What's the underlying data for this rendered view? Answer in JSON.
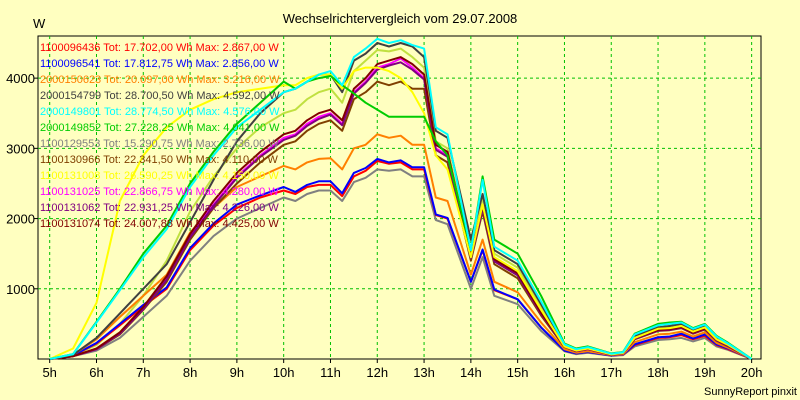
{
  "chart_data": {
    "type": "line",
    "title": "Wechselrichtervergleich vom 29.07.2008",
    "ylabel": "W",
    "xlabel": "",
    "ylim": [
      0,
      4600
    ],
    "xlim": [
      4.75,
      20.2
    ],
    "grid": true,
    "legend_position": "top-left",
    "y_ticks": [
      1000,
      2000,
      3000,
      4000
    ],
    "x_ticks": [
      {
        "value": 5,
        "label": "5h"
      },
      {
        "value": 6,
        "label": "6h"
      },
      {
        "value": 7,
        "label": "7h"
      },
      {
        "value": 8,
        "label": "8h"
      },
      {
        "value": 9,
        "label": "9h"
      },
      {
        "value": 10,
        "label": "10h"
      },
      {
        "value": 11,
        "label": "11h"
      },
      {
        "value": 12,
        "label": "12h"
      },
      {
        "value": 13,
        "label": "13h"
      },
      {
        "value": 14,
        "label": "14h"
      },
      {
        "value": 15,
        "label": "15h"
      },
      {
        "value": 16,
        "label": "16h"
      },
      {
        "value": 17,
        "label": "17h"
      },
      {
        "value": 18,
        "label": "18h"
      },
      {
        "value": 19,
        "label": "19h"
      },
      {
        "value": 20,
        "label": "20h"
      }
    ],
    "x": [
      5.0,
      5.5,
      6.0,
      6.5,
      7.0,
      7.5,
      8.0,
      8.5,
      9.0,
      9.5,
      10.0,
      10.25,
      10.5,
      10.75,
      11.0,
      11.25,
      11.5,
      11.75,
      12.0,
      12.25,
      12.5,
      12.75,
      13.0,
      13.25,
      13.5,
      14.0,
      14.25,
      14.5,
      15.0,
      15.5,
      16.0,
      16.25,
      16.5,
      17.0,
      17.25,
      17.5,
      18.0,
      18.25,
      18.5,
      18.75,
      19.0,
      19.25,
      19.5,
      20.0
    ],
    "series": [
      {
        "name": "1100096436 Tot: 17.702,00 Wh Max: 2.867,00 W",
        "color": "#ff0000",
        "values": [
          0,
          50,
          220,
          480,
          750,
          1000,
          1550,
          1900,
          2150,
          2300,
          2400,
          2350,
          2450,
          2480,
          2480,
          2320,
          2600,
          2680,
          2820,
          2780,
          2800,
          2700,
          2700,
          2050,
          2000,
          1100,
          1550,
          980,
          850,
          450,
          120,
          80,
          100,
          50,
          60,
          200,
          300,
          310,
          340,
          280,
          330,
          200,
          140,
          0
        ]
      },
      {
        "name": "1100096541 Tot: 17.812,75 Wh Max: 2.856,00 W",
        "color": "#0000ff",
        "values": [
          0,
          50,
          230,
          500,
          770,
          1020,
          1580,
          1930,
          2200,
          2330,
          2450,
          2380,
          2480,
          2530,
          2530,
          2360,
          2650,
          2720,
          2850,
          2800,
          2830,
          2730,
          2730,
          2060,
          2010,
          1100,
          1560,
          990,
          850,
          450,
          120,
          80,
          100,
          50,
          60,
          210,
          310,
          320,
          360,
          290,
          350,
          210,
          150,
          0
        ]
      },
      {
        "name": "2000150623 Tot: 20.097,00 Wh Max: 3.216,00 W",
        "color": "#ff8000",
        "values": [
          0,
          60,
          280,
          600,
          900,
          1200,
          1800,
          2150,
          2450,
          2600,
          2750,
          2700,
          2800,
          2850,
          2860,
          2700,
          3000,
          3050,
          3200,
          3150,
          3180,
          3050,
          3050,
          2300,
          2250,
          1200,
          1700,
          1100,
          950,
          520,
          140,
          90,
          110,
          55,
          65,
          240,
          350,
          360,
          390,
          320,
          380,
          230,
          160,
          0
        ]
      },
      {
        "name": "2000154799 Tot: 28.700,50 Wh Max: 4.592,00 W",
        "color": "#404040",
        "values": [
          0,
          60,
          300,
          650,
          1000,
          1350,
          1950,
          2550,
          3100,
          3500,
          3800,
          3850,
          3950,
          4050,
          4050,
          3800,
          4250,
          4350,
          4500,
          4450,
          4500,
          4450,
          4300,
          3250,
          3150,
          1700,
          2350,
          1550,
          1350,
          780,
          200,
          130,
          160,
          70,
          90,
          330,
          450,
          470,
          500,
          410,
          470,
          300,
          210,
          0
        ]
      },
      {
        "name": "2000149801 Tot: 28.774,50 Wh Max: 4.576,00 W",
        "color": "#00ffff",
        "values": [
          0,
          70,
          520,
          980,
          1450,
          1850,
          2450,
          2900,
          3300,
          3550,
          3800,
          3850,
          3950,
          4050,
          4100,
          3900,
          4300,
          4420,
          4560,
          4500,
          4540,
          4470,
          4420,
          3300,
          3200,
          1550,
          2550,
          1600,
          1400,
          820,
          210,
          140,
          170,
          75,
          95,
          350,
          480,
          500,
          520,
          430,
          490,
          320,
          220,
          0
        ]
      },
      {
        "name": "2000149852 Tot: 27.228,25 Wh Max: 4.041,00 W",
        "color": "#00cc00",
        "values": [
          0,
          70,
          530,
          1000,
          1500,
          1900,
          2500,
          2950,
          3350,
          3650,
          3950,
          3850,
          3950,
          4000,
          4030,
          3900,
          3780,
          3650,
          3550,
          3450,
          3450,
          3450,
          3450,
          3100,
          2900,
          1550,
          2600,
          1700,
          1500,
          900,
          220,
          150,
          180,
          80,
          100,
          360,
          500,
          520,
          530,
          440,
          500,
          330,
          230,
          0
        ]
      },
      {
        "name": "1100129553 Tot: 15.290,75 Wh Max: 2.736,00 W",
        "color": "#808080",
        "values": [
          0,
          40,
          120,
          300,
          600,
          900,
          1400,
          1750,
          2000,
          2150,
          2300,
          2250,
          2350,
          2400,
          2400,
          2250,
          2520,
          2580,
          2700,
          2680,
          2700,
          2600,
          2600,
          1980,
          1920,
          1000,
          1450,
          900,
          780,
          400,
          110,
          70,
          90,
          45,
          55,
          180,
          270,
          280,
          300,
          250,
          300,
          180,
          130,
          0
        ]
      },
      {
        "name": "1100130966 Tot: 22.341,50 Wh Max: 4.110,00 W",
        "color": "#804000",
        "values": [
          0,
          40,
          140,
          350,
          700,
          1100,
          1700,
          2150,
          2500,
          2800,
          3050,
          3100,
          3250,
          3350,
          3400,
          3250,
          3700,
          3800,
          3950,
          3900,
          3950,
          3850,
          3850,
          2900,
          2800,
          1400,
          2100,
          1350,
          1150,
          620,
          170,
          110,
          140,
          60,
          80,
          280,
          400,
          410,
          440,
          360,
          420,
          260,
          180,
          0
        ]
      },
      {
        "name": "1100131008 Tot: 26.590,25 Wh Max: 4.150,00 W",
        "color": "#ffff00",
        "values": [
          0,
          150,
          800,
          2250,
          2900,
          3300,
          3550,
          3700,
          3800,
          3850,
          3900,
          3900,
          4000,
          4050,
          4050,
          3850,
          4100,
          4150,
          4150,
          4100,
          4000,
          3800,
          3500,
          2900,
          2700,
          1450,
          2200,
          1450,
          1250,
          700,
          180,
          120,
          150,
          65,
          85,
          300,
          430,
          440,
          470,
          390,
          450,
          280,
          200,
          0
        ]
      },
      {
        "name": "1100131025 Tot: 22.866,75 Wh Max: 4.280,00 W",
        "color": "#ff00ff",
        "values": [
          0,
          40,
          140,
          370,
          720,
          1150,
          1750,
          2200,
          2600,
          2900,
          3150,
          3200,
          3350,
          3450,
          3500,
          3350,
          3800,
          3950,
          4150,
          4200,
          4280,
          4150,
          4000,
          3000,
          2900,
          1450,
          2150,
          1400,
          1200,
          650,
          180,
          110,
          140,
          60,
          80,
          290,
          410,
          420,
          450,
          370,
          430,
          270,
          190,
          0
        ]
      },
      {
        "name": "1100131062 Tot: 22.931,25 Wh Max: 4.226,00 W",
        "color": "#800080",
        "values": [
          0,
          40,
          140,
          360,
          710,
          1130,
          1730,
          2180,
          2580,
          2880,
          3120,
          3180,
          3320,
          3420,
          3480,
          3330,
          3780,
          3930,
          4120,
          4180,
          4226,
          4120,
          3980,
          2980,
          2880,
          1440,
          2140,
          1390,
          1190,
          640,
          175,
          110,
          140,
          60,
          80,
          285,
          405,
          415,
          445,
          365,
          425,
          265,
          185,
          0
        ]
      },
      {
        "name": "1100131074 Tot: 24.007,88 Wh Max: 4.425,00 W",
        "color": "#800000",
        "values": [
          0,
          40,
          150,
          380,
          740,
          1180,
          1780,
          2250,
          2650,
          2950,
          3200,
          3250,
          3400,
          3500,
          3550,
          3400,
          3850,
          4000,
          4200,
          4250,
          4300,
          4200,
          4050,
          3050,
          2950,
          1480,
          2180,
          1420,
          1220,
          660,
          180,
          115,
          145,
          62,
          82,
          295,
          415,
          425,
          455,
          375,
          435,
          275,
          195,
          0
        ]
      },
      {
        "name": "",
        "color": "#c0e040",
        "values": [
          0,
          50,
          200,
          500,
          900,
          1400,
          2100,
          2600,
          3000,
          3300,
          3500,
          3550,
          3700,
          3800,
          3850,
          3650,
          4100,
          4250,
          4400,
          4380,
          4420,
          4300,
          4150,
          3100,
          3000,
          1500,
          2300,
          1500,
          1300,
          730,
          200,
          130,
          160,
          70,
          90,
          320,
          450,
          460,
          490,
          400,
          460,
          290,
          200,
          0
        ]
      }
    ]
  },
  "footer": {
    "credit": "SunnyReport pinxit"
  }
}
